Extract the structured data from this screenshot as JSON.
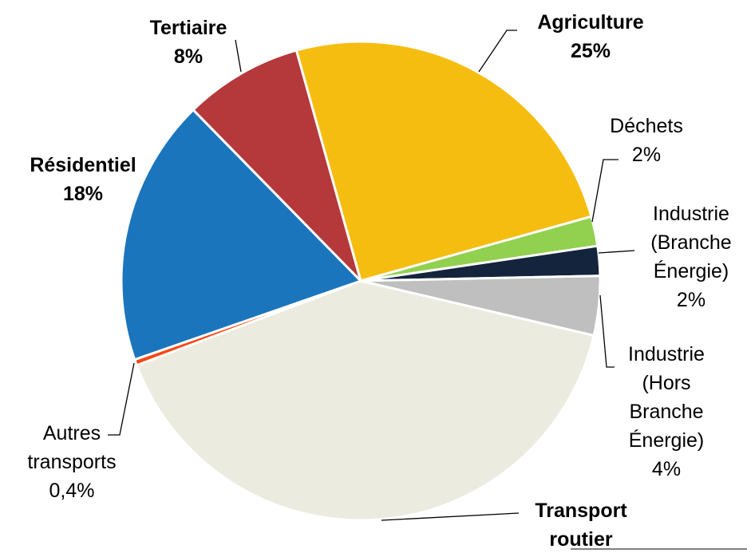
{
  "chart_data": {
    "type": "pie",
    "categories": [
      "Agriculture",
      "Déchets",
      "Industrie (Branche Énergie)",
      "Industrie (Hors Branche Énergie)",
      "Transport routier",
      "Autres transports",
      "Résidentiel",
      "Tertiaire"
    ],
    "values": [
      25,
      2,
      2,
      4,
      40.6,
      0.4,
      18,
      8
    ],
    "value_labels": [
      "25%",
      "2%",
      "2%",
      "4%",
      null,
      "0,4%",
      "18%",
      "8%"
    ],
    "colors": [
      "#f6bd11",
      "#92d050",
      "#14243d",
      "#bfbfbf",
      "#ecebe0",
      "#ff4512",
      "#1b75bc",
      "#b5383b"
    ]
  }
}
